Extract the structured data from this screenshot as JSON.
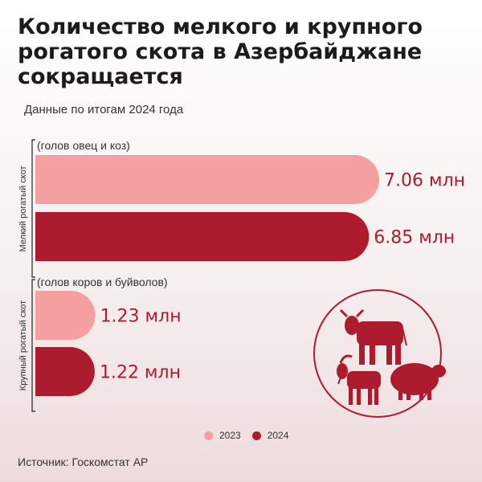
{
  "title": "Количество мелкого и крупного рогатого скота в Азербайджане сокращается",
  "subtitle": "Данные по итогам 2024 года",
  "source": "Источник: Госкомстат АР",
  "colors": {
    "y2023": "#f5a0a0",
    "y2024": "#ad1b2e",
    "text": "#ad1b2e"
  },
  "icons": [
    "cow-icon",
    "goat-icon",
    "sheep-icon"
  ],
  "chart_data": {
    "type": "bar",
    "orientation": "horizontal",
    "legend": [
      "2023",
      "2024"
    ],
    "legend_placement": "bottom",
    "groups": [
      {
        "name": "Мелкий рогатый скот",
        "note": "(голов овец и коз)",
        "bars": [
          {
            "year": "2023",
            "value": 7.06,
            "label": "7.06 млн"
          },
          {
            "year": "2024",
            "value": 6.85,
            "label": "6.85 млн"
          }
        ]
      },
      {
        "name": "Крупный рогатый скот",
        "note": "(голов коров и буйволов)",
        "bars": [
          {
            "year": "2023",
            "value": 1.23,
            "label": "1.23 млн"
          },
          {
            "year": "2024",
            "value": 1.22,
            "label": "1.22 млн"
          }
        ]
      }
    ]
  }
}
